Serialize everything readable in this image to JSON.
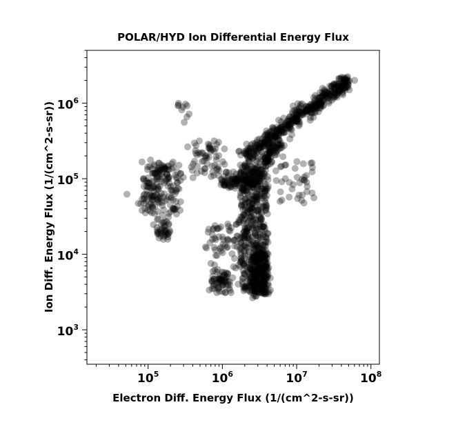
{
  "chart_data": {
    "type": "scatter",
    "title": "POLAR/HYD  Ion Differential Energy Flux",
    "xlabel": "Electron Diff. Energy Flux (1/(cm^2-s-sr))",
    "ylabel": "Ion Diff. Energy Flux (1/(cm^2-s-sr))",
    "x_scale": "log",
    "y_scale": "log",
    "xlim": [
      15000,
      130000000
    ],
    "ylim": [
      350,
      5000000
    ],
    "x_ticks": [
      {
        "base": "10",
        "exp": "5",
        "value": 100000
      },
      {
        "base": "10",
        "exp": "6",
        "value": 1000000
      },
      {
        "base": "10",
        "exp": "7",
        "value": 10000000
      },
      {
        "base": "10",
        "exp": "8",
        "value": 100000000
      }
    ],
    "y_ticks": [
      {
        "base": "10",
        "exp": "3",
        "value": 1000
      },
      {
        "base": "10",
        "exp": "4",
        "value": 10000
      },
      {
        "base": "10",
        "exp": "5",
        "value": 100000
      },
      {
        "base": "10",
        "exp": "6",
        "value": 1000000
      }
    ],
    "grid": false,
    "marker_color": "#000000",
    "marker_opacity": 0.3,
    "series": [
      {
        "clusters": [
          {
            "x_log": [
              6.3,
              7.7
            ],
            "y_log": [
              5.3,
              6.3
            ],
            "n": 450,
            "along_line": true,
            "spread": 0.05
          },
          {
            "x_log": [
              6.25,
              6.6
            ],
            "y_log": [
              3.5,
              5.2
            ],
            "n": 500,
            "along_line": false,
            "spread": 0.04
          },
          {
            "x_log": [
              6.4,
              6.6
            ],
            "y_log": [
              3.45,
              4.0
            ],
            "n": 200,
            "along_line": false,
            "spread": 0.05
          },
          {
            "x_log": [
              6.0,
              6.5
            ],
            "y_log": [
              4.9,
              5.1
            ],
            "n": 120,
            "along_line": false,
            "spread": 0.03
          },
          {
            "x_log": [
              6.55,
              6.8
            ],
            "y_log": [
              5.2,
              5.5
            ],
            "n": 80,
            "along_line": true,
            "spread": 0.04
          },
          {
            "x_log": [
              4.95,
              5.4
            ],
            "y_log": [
              4.55,
              5.2
            ],
            "n": 180,
            "along_line": false,
            "spread": 0.08
          },
          {
            "x_log": [
              5.1,
              5.3
            ],
            "y_log": [
              4.2,
              4.45
            ],
            "n": 40,
            "along_line": false,
            "spread": 0.05
          },
          {
            "x_log": [
              5.6,
              6.0
            ],
            "y_log": [
              5.05,
              5.5
            ],
            "n": 60,
            "along_line": false,
            "spread": 0.08
          },
          {
            "x_log": [
              5.85,
              6.1
            ],
            "y_log": [
              3.5,
              3.75
            ],
            "n": 60,
            "along_line": false,
            "spread": 0.05
          },
          {
            "x_log": [
              5.8,
              6.3
            ],
            "y_log": [
              3.75,
              4.45
            ],
            "n": 70,
            "along_line": false,
            "spread": 0.1
          },
          {
            "x_log": [
              6.75,
              7.3
            ],
            "y_log": [
              4.7,
              5.25
            ],
            "n": 40,
            "along_line": false,
            "spread": 0.1
          },
          {
            "x_log": [
              5.4,
              5.6
            ],
            "y_log": [
              5.8,
              6.0
            ],
            "n": 10,
            "along_line": false,
            "spread": 0.08
          },
          {
            "x_log": [
              4.7,
              5.2
            ],
            "y_log": [
              4.6,
              4.8
            ],
            "n": 6,
            "along_line": false,
            "spread": 0.08
          }
        ]
      }
    ]
  }
}
